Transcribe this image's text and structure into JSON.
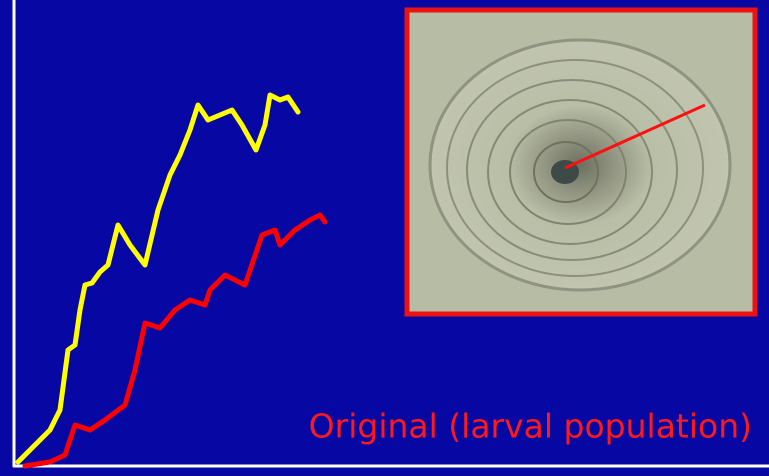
{
  "caption": "Original (larval population)"
}
